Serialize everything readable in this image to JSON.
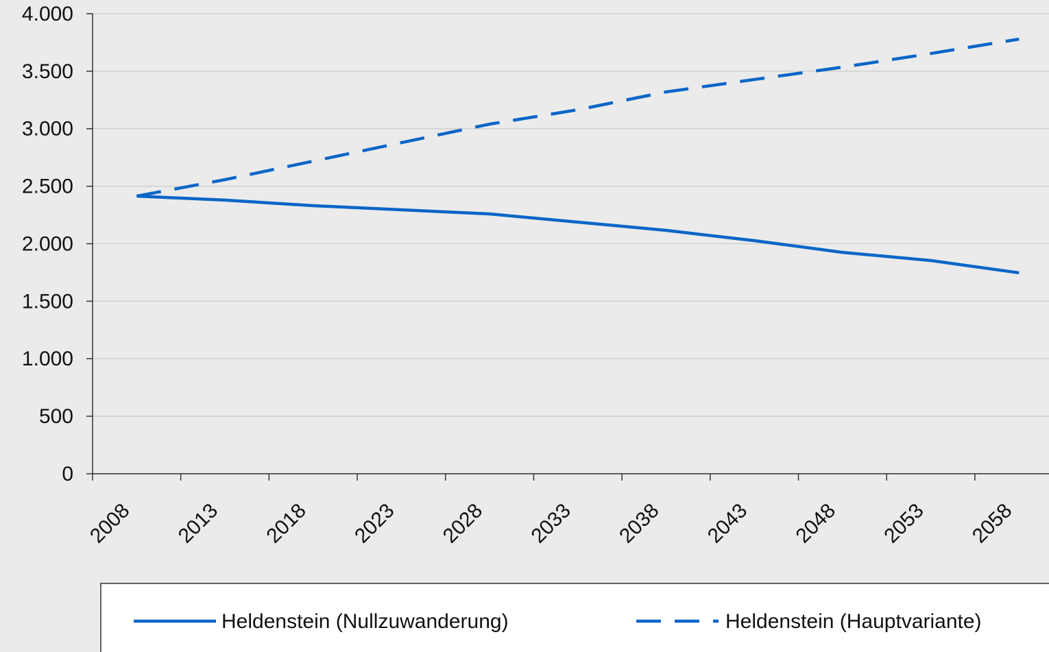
{
  "chart_data": {
    "type": "line",
    "x": [
      2010.5,
      2015.5,
      2020.5,
      2025.5,
      2030.5,
      2035.5,
      2040.5,
      2045.5,
      2050.5,
      2055.5,
      2060.5
    ],
    "series": [
      {
        "name": "Heldenstein (Nullzuwanderung)",
        "color": "#0a66c8",
        "dash": "solid",
        "values": [
          2414,
          2379,
          2331,
          2295,
          2259,
          2188,
          2116,
          2027,
          1925,
          1854,
          1747
        ]
      },
      {
        "name": "Heldenstein (Hauptvariante)",
        "color": "#0a66c8",
        "dash": "dashed",
        "values": [
          2414,
          2557,
          2718,
          2879,
          3040,
          3165,
          3320,
          3428,
          3535,
          3654,
          3779
        ]
      }
    ],
    "xlim": [
      2008,
      2062.2
    ],
    "xticks": [
      2008,
      2013,
      2018,
      2023,
      2028,
      2033,
      2038,
      2043,
      2048,
      2053,
      2058
    ],
    "ylim": [
      0,
      4000
    ],
    "yticks": [
      0,
      500,
      {
        "value": 1000,
        "label": "1.000"
      },
      {
        "value": 1500,
        "label": "1.500"
      },
      {
        "value": 2000,
        "label": "2.000"
      },
      {
        "value": 2500,
        "label": "2.500"
      },
      {
        "value": 3000,
        "label": "3.000"
      },
      {
        "value": 3500,
        "label": "3.500"
      },
      {
        "value": 4000,
        "label": "4.000"
      }
    ],
    "grid": true,
    "legend": "bottom"
  }
}
